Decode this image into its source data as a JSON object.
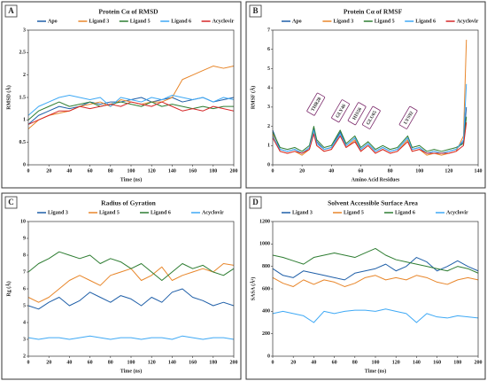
{
  "chart_data": [
    {
      "type": "line",
      "panel_label": "A",
      "title": "Protein Cα of RMSD",
      "xlabel": "Time (ns)",
      "ylabel": "RMSD (Å)",
      "xlim": [
        0,
        200
      ],
      "xticks": [
        0,
        20,
        40,
        60,
        80,
        100,
        120,
        140,
        160,
        180,
        200
      ],
      "ylim": [
        0,
        3
      ],
      "yticks": [
        0,
        0.5,
        1,
        1.5,
        2,
        2.5,
        3
      ],
      "x": [
        0,
        10,
        20,
        30,
        40,
        50,
        60,
        70,
        80,
        90,
        100,
        110,
        120,
        130,
        140,
        150,
        160,
        170,
        180,
        190,
        200
      ],
      "series": [
        {
          "name": "Apo",
          "color": "#1f5fa8",
          "values": [
            0.9,
            1.1,
            1.2,
            1.3,
            1.25,
            1.3,
            1.4,
            1.35,
            1.4,
            1.4,
            1.45,
            1.5,
            1.4,
            1.45,
            1.5,
            1.4,
            1.45,
            1.5,
            1.4,
            1.45,
            1.5
          ]
        },
        {
          "name": "Ligand 3",
          "color": "#e8862a",
          "values": [
            0.8,
            1.0,
            1.1,
            1.15,
            1.2,
            1.3,
            1.35,
            1.4,
            1.3,
            1.45,
            1.4,
            1.35,
            1.4,
            1.4,
            1.5,
            1.9,
            2.0,
            2.1,
            2.2,
            2.15,
            2.2
          ]
        },
        {
          "name": "Ligand 5",
          "color": "#2e7d32",
          "values": [
            1.0,
            1.2,
            1.3,
            1.4,
            1.3,
            1.35,
            1.4,
            1.3,
            1.35,
            1.4,
            1.35,
            1.3,
            1.4,
            1.3,
            1.35,
            1.3,
            1.25,
            1.3,
            1.25,
            1.3,
            1.3
          ]
        },
        {
          "name": "Ligand 6",
          "color": "#3fa9f5",
          "values": [
            1.1,
            1.3,
            1.4,
            1.5,
            1.55,
            1.5,
            1.45,
            1.5,
            1.3,
            1.5,
            1.45,
            1.4,
            1.5,
            1.45,
            1.55,
            1.5,
            1.45,
            1.5,
            1.4,
            1.5,
            1.45
          ]
        },
        {
          "name": "Acyclovir",
          "color": "#d62728",
          "values": [
            0.9,
            1.0,
            1.1,
            1.2,
            1.2,
            1.3,
            1.25,
            1.3,
            1.35,
            1.3,
            1.4,
            1.35,
            1.3,
            1.4,
            1.3,
            1.2,
            1.25,
            1.2,
            1.3,
            1.25,
            1.2
          ]
        }
      ]
    },
    {
      "type": "line",
      "panel_label": "B",
      "title": "Protein Cα of RMSF",
      "xlabel": "Amino Acid Residues",
      "ylabel": "RMSF (Å)",
      "xlim": [
        0,
        140
      ],
      "xticks": [
        0,
        20,
        40,
        60,
        80,
        100,
        120,
        140
      ],
      "ylim": [
        0,
        7
      ],
      "yticks": [
        0,
        1,
        2,
        3,
        4,
        5,
        6,
        7
      ],
      "annotations": [
        "THR28",
        "GLY46",
        "HIS56",
        "GLU65",
        "LYS92"
      ],
      "x": [
        0,
        5,
        10,
        15,
        20,
        25,
        28,
        30,
        35,
        40,
        46,
        50,
        56,
        60,
        65,
        70,
        75,
        80,
        85,
        92,
        95,
        100,
        105,
        110,
        115,
        120,
        125,
        130,
        132
      ],
      "series": [
        {
          "name": "Apo",
          "color": "#1f5fa8",
          "values": [
            1.8,
            0.8,
            0.7,
            0.8,
            0.6,
            0.9,
            1.9,
            1.2,
            0.8,
            0.9,
            1.7,
            1.0,
            1.4,
            0.8,
            1.1,
            0.7,
            0.9,
            0.7,
            0.8,
            1.4,
            0.8,
            0.9,
            0.6,
            0.7,
            0.6,
            0.7,
            0.8,
            1.2,
            3.0
          ]
        },
        {
          "name": "Ligand 3",
          "color": "#e8862a",
          "values": [
            1.6,
            0.7,
            0.6,
            0.7,
            0.5,
            0.8,
            1.7,
            1.0,
            0.7,
            0.8,
            1.5,
            0.9,
            1.3,
            0.7,
            1.0,
            0.6,
            0.8,
            0.6,
            0.7,
            1.3,
            0.7,
            0.8,
            0.5,
            0.6,
            0.5,
            0.6,
            0.7,
            1.5,
            6.5
          ]
        },
        {
          "name": "Ligand 5",
          "color": "#2e7d32",
          "values": [
            1.7,
            0.9,
            0.8,
            0.9,
            0.7,
            1.0,
            2.0,
            1.3,
            0.9,
            1.0,
            1.8,
            1.1,
            1.5,
            0.9,
            1.2,
            0.8,
            1.0,
            0.8,
            0.9,
            1.5,
            0.9,
            1.0,
            0.7,
            0.8,
            0.7,
            0.8,
            0.9,
            1.1,
            2.5
          ]
        },
        {
          "name": "Ligand 6",
          "color": "#3fa9f5",
          "values": [
            1.5,
            0.8,
            0.7,
            0.8,
            0.6,
            0.9,
            1.8,
            1.1,
            0.8,
            0.9,
            1.6,
            1.0,
            1.4,
            0.8,
            1.1,
            0.7,
            0.9,
            0.7,
            0.8,
            1.4,
            0.8,
            0.9,
            0.6,
            0.7,
            0.6,
            0.7,
            0.8,
            1.3,
            4.2
          ]
        },
        {
          "name": "Acyclovir",
          "color": "#d62728",
          "values": [
            1.4,
            0.7,
            0.6,
            0.7,
            0.6,
            0.8,
            1.6,
            1.0,
            0.7,
            0.8,
            1.5,
            0.9,
            1.2,
            0.7,
            1.0,
            0.6,
            0.8,
            0.6,
            0.7,
            1.2,
            0.7,
            0.8,
            0.6,
            0.6,
            0.6,
            0.6,
            0.7,
            1.0,
            2.2
          ]
        }
      ]
    },
    {
      "type": "line",
      "panel_label": "C",
      "title": "Radius of Gyration",
      "xlabel": "Time (ns)",
      "ylabel": "Rg (Å)",
      "xlim": [
        0,
        200
      ],
      "xticks": [
        0,
        20,
        40,
        60,
        80,
        100,
        120,
        140,
        160,
        180,
        200
      ],
      "ylim": [
        2,
        10
      ],
      "yticks": [
        2,
        3,
        4,
        5,
        6,
        7,
        8,
        9,
        10
      ],
      "x": [
        0,
        10,
        20,
        30,
        40,
        50,
        60,
        70,
        80,
        90,
        100,
        110,
        120,
        130,
        140,
        150,
        160,
        170,
        180,
        190,
        200
      ],
      "series": [
        {
          "name": "Ligand 3",
          "color": "#1f5fa8",
          "values": [
            5.0,
            4.8,
            5.2,
            5.5,
            5.0,
            5.3,
            5.8,
            5.5,
            5.2,
            5.6,
            5.4,
            5.0,
            5.5,
            5.2,
            5.8,
            6.0,
            5.5,
            5.3,
            5.0,
            5.2,
            5.0
          ]
        },
        {
          "name": "Ligand 5",
          "color": "#e8862a",
          "values": [
            5.5,
            5.2,
            5.5,
            6.0,
            6.5,
            6.8,
            6.5,
            6.2,
            6.8,
            7.0,
            7.2,
            6.5,
            6.8,
            7.3,
            6.5,
            6.8,
            7.0,
            7.2,
            7.0,
            7.5,
            7.4
          ]
        },
        {
          "name": "Ligand 6",
          "color": "#2e7d32",
          "values": [
            7.0,
            7.5,
            7.8,
            8.2,
            8.0,
            7.8,
            8.0,
            7.5,
            7.8,
            7.6,
            7.2,
            7.5,
            7.0,
            6.5,
            7.0,
            7.5,
            7.2,
            7.4,
            7.0,
            6.8,
            7.2
          ]
        },
        {
          "name": "Acyclovir",
          "color": "#3fa9f5",
          "values": [
            3.1,
            3.0,
            3.1,
            3.1,
            3.0,
            3.1,
            3.2,
            3.1,
            3.0,
            3.1,
            3.1,
            3.0,
            3.1,
            3.1,
            3.0,
            3.2,
            3.1,
            3.0,
            3.1,
            3.1,
            3.0
          ]
        }
      ]
    },
    {
      "type": "line",
      "panel_label": "D",
      "title": "Solvent Accessible Surface Area",
      "xlabel": "Time (ns)",
      "ylabel": "SASA (Å²)",
      "xlim": [
        0,
        200
      ],
      "xticks": [
        0,
        20,
        40,
        60,
        80,
        100,
        120,
        140,
        160,
        180,
        200
      ],
      "ylim": [
        0,
        1200
      ],
      "yticks": [
        0,
        200,
        400,
        600,
        800,
        1000,
        1200
      ],
      "x": [
        0,
        10,
        20,
        30,
        40,
        50,
        60,
        70,
        80,
        90,
        100,
        110,
        120,
        130,
        140,
        150,
        160,
        170,
        180,
        190,
        200
      ],
      "series": [
        {
          "name": "Ligand 3",
          "color": "#1f5fa8",
          "values": [
            780,
            720,
            700,
            760,
            740,
            720,
            700,
            680,
            740,
            760,
            780,
            820,
            760,
            800,
            880,
            840,
            760,
            800,
            850,
            800,
            760
          ]
        },
        {
          "name": "Ligand 5",
          "color": "#e8862a",
          "values": [
            700,
            650,
            620,
            680,
            640,
            680,
            660,
            620,
            650,
            700,
            720,
            680,
            700,
            680,
            720,
            700,
            660,
            640,
            680,
            700,
            680
          ]
        },
        {
          "name": "Ligand 6",
          "color": "#2e7d32",
          "values": [
            900,
            880,
            850,
            820,
            880,
            900,
            920,
            900,
            880,
            920,
            960,
            900,
            860,
            840,
            820,
            800,
            780,
            760,
            800,
            780,
            740
          ]
        },
        {
          "name": "Acyclovir",
          "color": "#3fa9f5",
          "values": [
            380,
            400,
            380,
            360,
            300,
            400,
            380,
            400,
            410,
            410,
            400,
            420,
            400,
            380,
            300,
            380,
            350,
            340,
            360,
            350,
            340
          ]
        }
      ]
    }
  ]
}
